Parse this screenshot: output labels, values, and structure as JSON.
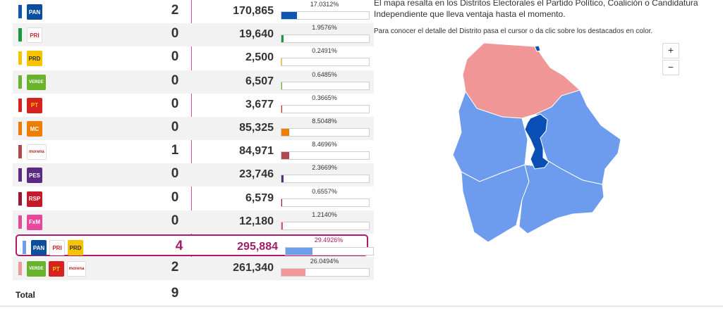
{
  "results": {
    "rows": [
      {
        "logos": [
          {
            "icon": "pan-logo",
            "text": "PAN",
            "bg": "#0b4e9e",
            "fg": "#ffffff"
          }
        ],
        "bar_color": "#0d57b0",
        "districts": "2",
        "votes": "170,865",
        "pct_label": "17.0312%",
        "pct": 17.0312,
        "fill_color": "#0d57b0"
      },
      {
        "logos": [
          {
            "icon": "pri-logo",
            "text": "PRI",
            "bg": "#ffffff",
            "fg": "#d42027"
          }
        ],
        "bar_color": "#1a9a3a",
        "districts": "0",
        "votes": "19,640",
        "pct_label": "1.9576%",
        "pct": 1.9576,
        "fill_color": "#1a9a3a"
      },
      {
        "logos": [
          {
            "icon": "prd-logo",
            "text": "PRD",
            "bg": "#f6c300",
            "fg": "#333333"
          }
        ],
        "bar_color": "#f6c300",
        "districts": "0",
        "votes": "2,500",
        "pct_label": "0.2491%",
        "pct": 0.2491,
        "fill_color": "#f6c300"
      },
      {
        "logos": [
          {
            "icon": "pvem-logo",
            "text": "VERDE",
            "bg": "#69b32d",
            "fg": "#ffffff"
          }
        ],
        "bar_color": "#69b32d",
        "districts": "0",
        "votes": "6,507",
        "pct_label": "0.6485%",
        "pct": 0.6485,
        "fill_color": "#69b32d"
      },
      {
        "logos": [
          {
            "icon": "pt-logo",
            "text": "PT",
            "bg": "#d6231f",
            "fg": "#ffd200"
          }
        ],
        "bar_color": "#d6231f",
        "districts": "0",
        "votes": "3,677",
        "pct_label": "0.3665%",
        "pct": 0.3665,
        "fill_color": "#d6231f"
      },
      {
        "logos": [
          {
            "icon": "mc-logo",
            "text": "MC",
            "bg": "#ef7d00",
            "fg": "#ffffff"
          }
        ],
        "bar_color": "#ef7d00",
        "districts": "0",
        "votes": "85,325",
        "pct_label": "8.5048%",
        "pct": 8.5048,
        "fill_color": "#ef7d00"
      },
      {
        "logos": [
          {
            "icon": "morena-logo",
            "text": "morena",
            "bg": "#ffffff",
            "fg": "#b5261e"
          }
        ],
        "bar_color": "#b0484d",
        "districts": "1",
        "votes": "84,971",
        "pct_label": "8.4696%",
        "pct": 8.4696,
        "fill_color": "#b0484d"
      },
      {
        "logos": [
          {
            "icon": "pes-logo",
            "text": "PES",
            "bg": "#5b2a82",
            "fg": "#ffffff"
          }
        ],
        "bar_color": "#5b2a82",
        "districts": "0",
        "votes": "23,746",
        "pct_label": "2.3669%",
        "pct": 2.3669,
        "fill_color": "#5b2a82"
      },
      {
        "logos": [
          {
            "icon": "rsp-logo",
            "text": "RSP",
            "bg": "#c51a2c",
            "fg": "#ffffff"
          }
        ],
        "bar_color": "#9c1832",
        "districts": "0",
        "votes": "6,579",
        "pct_label": "0.6557%",
        "pct": 0.6557,
        "fill_color": "#9c1832"
      },
      {
        "logos": [
          {
            "icon": "fxm-logo",
            "text": "FxM",
            "bg": "#e5489d",
            "fg": "#ffffff"
          }
        ],
        "bar_color": "#e5489d",
        "districts": "0",
        "votes": "12,180",
        "pct_label": "1.2140%",
        "pct": 1.214,
        "fill_color": "#e5489d"
      },
      {
        "logos": [
          {
            "icon": "pan-logo",
            "text": "PAN",
            "bg": "#0b4e9e",
            "fg": "#ffffff"
          },
          {
            "icon": "pri-logo",
            "text": "PRI",
            "bg": "#ffffff",
            "fg": "#d42027"
          },
          {
            "icon": "prd-logo",
            "text": "PRD",
            "bg": "#f6c300",
            "fg": "#333333"
          }
        ],
        "bar_color": "#6e9ee8",
        "districts": "4",
        "votes": "295,884",
        "pct_label": "29.4926%",
        "pct": 29.4926,
        "fill_color": "#6e9ee8",
        "highlight": true
      },
      {
        "logos": [
          {
            "icon": "pvem-logo",
            "text": "VERDE",
            "bg": "#69b32d",
            "fg": "#ffffff"
          },
          {
            "icon": "pt-logo",
            "text": "PT",
            "bg": "#d6231f",
            "fg": "#ffd200"
          },
          {
            "icon": "morena-logo",
            "text": "morena",
            "bg": "#ffffff",
            "fg": "#b5261e"
          }
        ],
        "bar_color": "#f09898",
        "districts": "2",
        "votes": "261,340",
        "pct_label": "26.0494%",
        "pct": 26.0494,
        "fill_color": "#f09898"
      }
    ],
    "total_label": "Total",
    "total_value": "9"
  },
  "panel": {
    "intro": "El mapa resalta en los Distritos Electorales el Partido Político, Coalición o Candidatura Independiente que lleva ventaja hasta el momento.",
    "help": "Para conocer el detalle del Distrito pasa el cursor o da clic sobre los destacados en color.",
    "zoom_in": "+",
    "zoom_out": "−"
  },
  "map_colors": {
    "coalition_pan_pri_prd": "#6d9cef",
    "coalition_verde_pt_morena": "#f09696",
    "pan": "#0a4fb5",
    "border": "#ffffff"
  }
}
